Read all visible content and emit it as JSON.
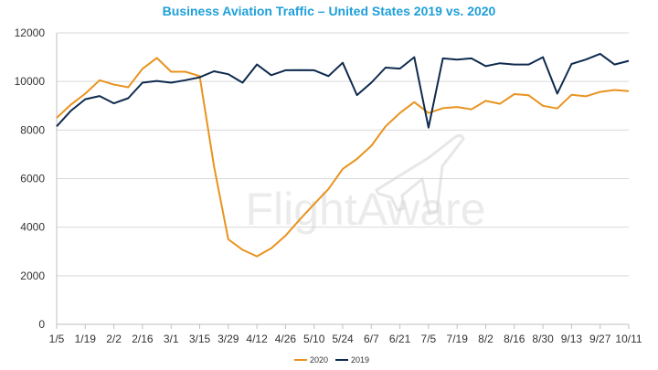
{
  "chart_data": {
    "type": "line",
    "title": "Business Aviation Traffic – United States 2019 vs. 2020",
    "title_color": "#1E9FD8",
    "watermark": "FlightAware",
    "xlabel": "",
    "ylabel": "",
    "ylim": [
      0,
      12000
    ],
    "yticks": [
      0,
      2000,
      4000,
      6000,
      8000,
      10000,
      12000
    ],
    "x_tick_labels": [
      "1/5",
      "1/19",
      "2/2",
      "2/16",
      "3/1",
      "3/15",
      "3/29",
      "4/12",
      "4/26",
      "5/10",
      "5/24",
      "6/7",
      "6/21",
      "7/5",
      "7/19",
      "8/2",
      "8/16",
      "8/30",
      "9/13",
      "9/27",
      "10/11"
    ],
    "grid": true,
    "legend_position": "bottom",
    "series": [
      {
        "name": "2020",
        "color": "#E8931E",
        "values": [
          8500,
          9050,
          9500,
          10050,
          9870,
          9760,
          10520,
          10970,
          10400,
          10400,
          10220,
          6500,
          3500,
          3070,
          2800,
          3130,
          3650,
          4320,
          4950,
          5570,
          6400,
          6810,
          7350,
          8150,
          8700,
          9150,
          8700,
          8900,
          8950,
          8850,
          9200,
          9080,
          9480,
          9430,
          9000,
          8890,
          9450,
          9390,
          9570,
          9650,
          9600
        ]
      },
      {
        "name": "2019",
        "color": "#0E2A4E",
        "values": [
          8150,
          8800,
          9270,
          9400,
          9100,
          9310,
          9950,
          10020,
          9950,
          10050,
          10170,
          10420,
          10300,
          9950,
          10700,
          10260,
          10460,
          10470,
          10460,
          10220,
          10770,
          9440,
          9950,
          10570,
          10530,
          11000,
          8100,
          10950,
          10900,
          10950,
          10630,
          10750,
          10700,
          10700,
          11000,
          9500,
          10720,
          10900,
          11140,
          10700,
          10850
        ]
      }
    ]
  }
}
